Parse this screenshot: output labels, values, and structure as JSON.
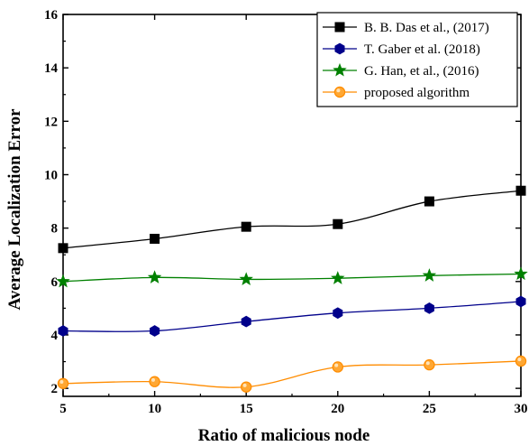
{
  "chart_data": {
    "type": "line",
    "title": "",
    "xlabel": "Ratio of malicious node",
    "ylabel": "Average Localization Error",
    "x": [
      5,
      10,
      15,
      20,
      25,
      30
    ],
    "xlim": [
      5,
      30
    ],
    "ylim": [
      1.7,
      16
    ],
    "xticks": [
      5,
      10,
      15,
      20,
      25,
      30
    ],
    "yticks": [
      2,
      4,
      6,
      8,
      10,
      12,
      14,
      16
    ],
    "grid": false,
    "legend_position": "top-right",
    "series": [
      {
        "name": "B. B. Das et al., (2017)",
        "marker": "square",
        "color": "#000000",
        "marker_fill": "#000000",
        "values": [
          7.25,
          7.6,
          8.05,
          8.15,
          9.0,
          9.4
        ]
      },
      {
        "name": "T. Gaber et al. (2018)",
        "marker": "hexagon",
        "color": "#00008b",
        "marker_fill": "#00008b",
        "values": [
          4.15,
          4.15,
          4.5,
          4.82,
          5.0,
          5.25
        ]
      },
      {
        "name": "G. Han, et al., (2016)",
        "marker": "star",
        "color": "#008000",
        "marker_fill": "#008000",
        "values": [
          6.0,
          6.15,
          6.08,
          6.12,
          6.22,
          6.28
        ]
      },
      {
        "name": "proposed algorithm",
        "marker": "circle",
        "color": "#ff8c00",
        "marker_fill": "#ffa733",
        "values": [
          2.18,
          2.25,
          2.05,
          2.8,
          2.88,
          3.02
        ]
      }
    ]
  }
}
